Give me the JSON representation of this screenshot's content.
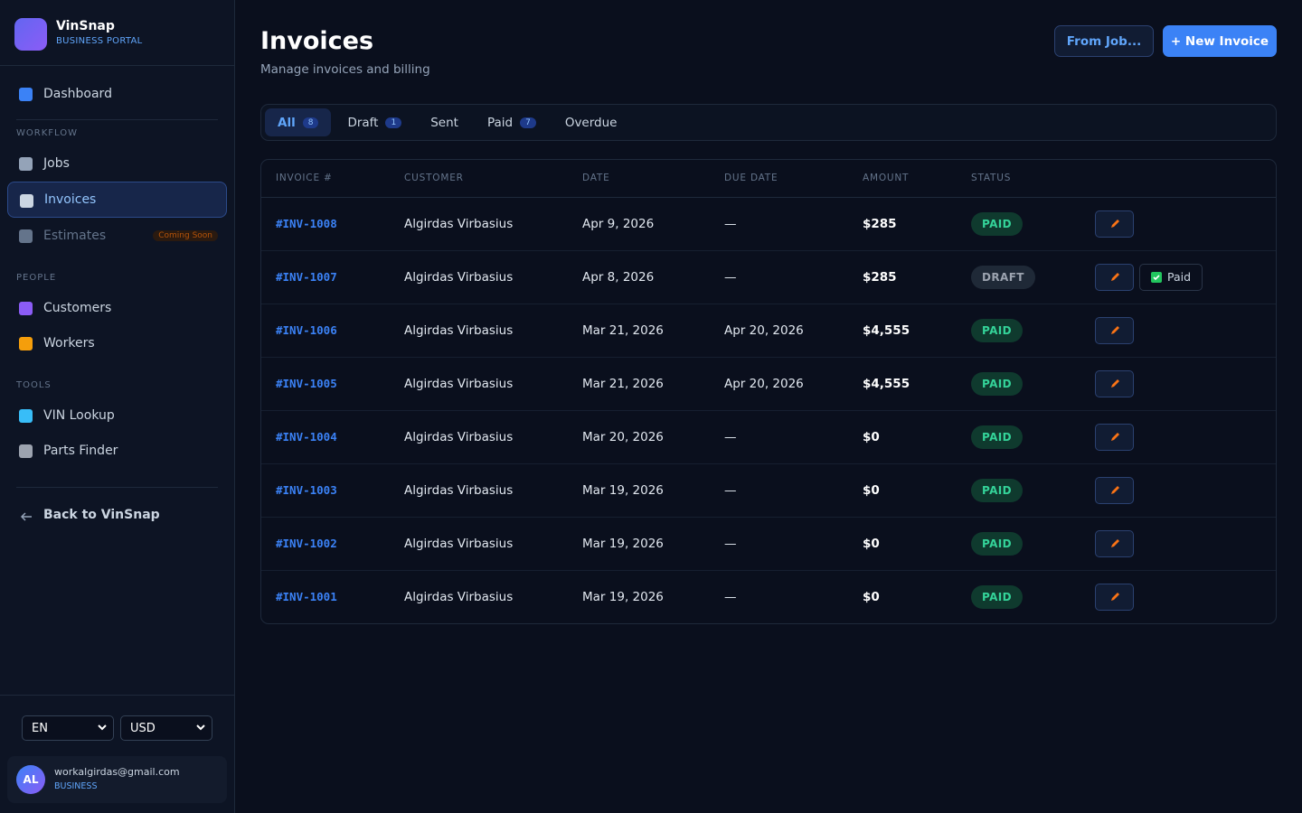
{
  "sidebar": {
    "brand_name": "VinSnap",
    "brand_tagline": "BUSINESS PORTAL",
    "dashboard": "Dashboard",
    "sections": [
      {
        "heading": "WORKFLOW",
        "items": [
          {
            "label": "Jobs"
          },
          {
            "label": "Invoices"
          },
          {
            "label": "Estimates",
            "badge": "Coming Soon"
          }
        ]
      },
      {
        "heading": "PEOPLE",
        "items": [
          {
            "label": "Customers"
          },
          {
            "label": "Workers"
          }
        ]
      },
      {
        "heading": "TOOLS",
        "items": [
          {
            "label": "VIN Lookup"
          },
          {
            "label": "Parts Finder"
          }
        ]
      }
    ],
    "back": "Back to VinSnap",
    "language": "EN",
    "currency": "USD",
    "user": {
      "initials": "AL",
      "email": "workalgirdas@gmail.com",
      "plan": "BUSINESS"
    }
  },
  "header": {
    "title": "Invoices",
    "subtitle": "Manage invoices and billing",
    "buttons": [
      "From Job...",
      "+ New Invoice"
    ]
  },
  "tabs": [
    {
      "label": "All",
      "count": 8
    },
    {
      "label": "Draft",
      "count": 1
    },
    {
      "label": "Sent"
    },
    {
      "label": "Paid",
      "count": 7
    },
    {
      "label": "Overdue"
    }
  ],
  "table": {
    "columns": [
      "INVOICE #",
      "CUSTOMER",
      "DATE",
      "DUE DATE",
      "AMOUNT",
      "STATUS"
    ],
    "rows": [
      {
        "number": "#INV-1008",
        "customer": "Algirdas Virbasius",
        "date": "Apr 9, 2026",
        "due_date": "—",
        "amount": "$285",
        "status": "PAID"
      },
      {
        "number": "#INV-1007",
        "customer": "Algirdas Virbasius",
        "date": "Apr 8, 2026",
        "due_date": "—",
        "amount": "$285",
        "status": "DRAFT",
        "action": "Paid"
      },
      {
        "number": "#INV-1006",
        "customer": "Algirdas Virbasius",
        "date": "Mar 21, 2026",
        "due_date": "Apr 20, 2026",
        "amount": "$4,555",
        "status": "PAID"
      },
      {
        "number": "#INV-1005",
        "customer": "Algirdas Virbasius",
        "date": "Mar 21, 2026",
        "due_date": "Apr 20, 2026",
        "amount": "$4,555",
        "status": "PAID"
      },
      {
        "number": "#INV-1004",
        "customer": "Algirdas Virbasius",
        "date": "Mar 20, 2026",
        "due_date": "—",
        "amount": "$0",
        "status": "PAID"
      },
      {
        "number": "#INV-1003",
        "customer": "Algirdas Virbasius",
        "date": "Mar 19, 2026",
        "due_date": "—",
        "amount": "$0",
        "status": "PAID"
      },
      {
        "number": "#INV-1002",
        "customer": "Algirdas Virbasius",
        "date": "Mar 19, 2026",
        "due_date": "—",
        "amount": "$0",
        "status": "PAID"
      },
      {
        "number": "#INV-1001",
        "customer": "Algirdas Virbasius",
        "date": "Mar 19, 2026",
        "due_date": "—",
        "amount": "$0",
        "status": "PAID"
      }
    ]
  }
}
